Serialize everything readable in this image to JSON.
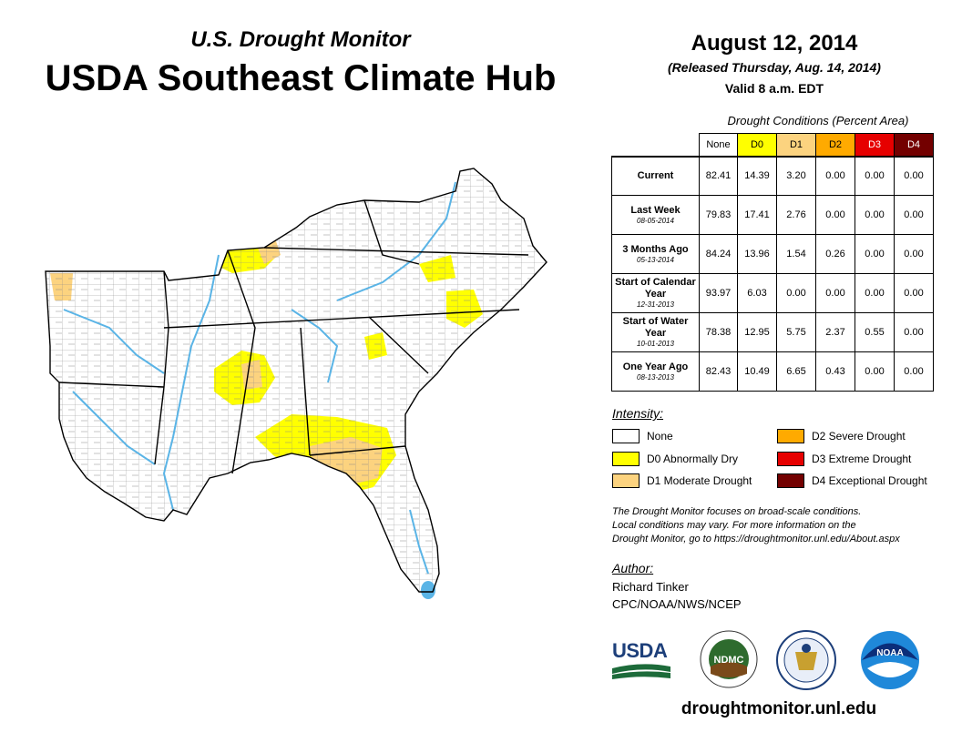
{
  "header": {
    "subtitle": "U.S. Drought Monitor",
    "title": "USDA Southeast Climate Hub"
  },
  "release": {
    "date": "August 12, 2014",
    "released": "(Released Thursday, Aug. 14, 2014)",
    "valid": "Valid 8 a.m. EDT"
  },
  "table": {
    "caption": "Drought Conditions (Percent Area)",
    "columns": [
      "None",
      "D0",
      "D1",
      "D2",
      "D3",
      "D4"
    ],
    "rows": [
      {
        "label": "Current",
        "sublabel": "",
        "values": [
          "82.41",
          "14.39",
          "3.20",
          "0.00",
          "0.00",
          "0.00"
        ]
      },
      {
        "label": "Last Week",
        "sublabel": "08-05-2014",
        "values": [
          "79.83",
          "17.41",
          "2.76",
          "0.00",
          "0.00",
          "0.00"
        ]
      },
      {
        "label": "3 Months Ago",
        "sublabel": "05-13-2014",
        "values": [
          "84.24",
          "13.96",
          "1.54",
          "0.26",
          "0.00",
          "0.00"
        ]
      },
      {
        "label": "Start of Calendar Year",
        "sublabel": "12-31-2013",
        "values": [
          "93.97",
          "6.03",
          "0.00",
          "0.00",
          "0.00",
          "0.00"
        ]
      },
      {
        "label": "Start of Water Year",
        "sublabel": "10-01-2013",
        "values": [
          "78.38",
          "12.95",
          "5.75",
          "2.37",
          "0.55",
          "0.00"
        ]
      },
      {
        "label": "One Year Ago",
        "sublabel": "08-13-2013",
        "values": [
          "82.43",
          "10.49",
          "6.65",
          "0.43",
          "0.00",
          "0.00"
        ]
      }
    ]
  },
  "legend": {
    "title": "Intensity:",
    "items": [
      {
        "label": "None",
        "color": "#ffffff"
      },
      {
        "label": "D0 Abnormally Dry",
        "color": "#ffff00"
      },
      {
        "label": "D1 Moderate Drought",
        "color": "#fcd37f"
      },
      {
        "label": "D2 Severe Drought",
        "color": "#ffaa00"
      },
      {
        "label": "D3 Extreme Drought",
        "color": "#e60000"
      },
      {
        "label": "D4 Exceptional Drought",
        "color": "#730000"
      }
    ]
  },
  "note": {
    "line1": "The Drought Monitor focuses on broad-scale conditions.",
    "line2": "Local conditions may vary. For more information on the",
    "line3": "Drought Monitor, go to https://droughtmonitor.unl.edu/About.aspx"
  },
  "author": {
    "title": "Author:",
    "name": "Richard Tinker",
    "org": "CPC/NOAA/NWS/NCEP"
  },
  "logos": {
    "usda": "USDA",
    "ndmc": "NDMC",
    "noaa": "NOAA"
  },
  "website": "droughtmonitor.unl.edu",
  "colors": {
    "water": "#5ab4e6",
    "state_border": "#000000",
    "county_border": "#666666"
  }
}
